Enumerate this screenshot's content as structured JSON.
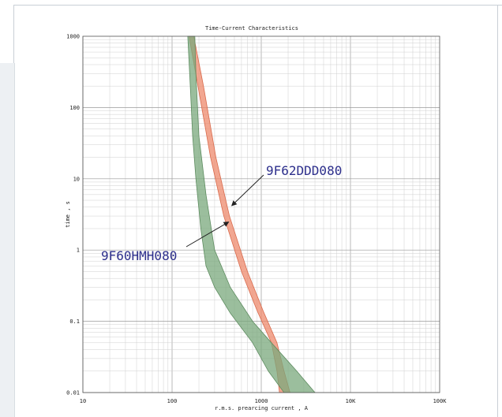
{
  "chart_data": {
    "type": "line",
    "title": "Time-Current Characteristics",
    "xlabel": "r.m.s. prearcing current , A",
    "ylabel": "time , s",
    "x_scale": "log",
    "y_scale": "log",
    "xlim": [
      10,
      100000
    ],
    "ylim": [
      0.01,
      1000
    ],
    "x_ticks": [
      "10",
      "100",
      "1000",
      "10K",
      "100K"
    ],
    "y_ticks": [
      "0.01",
      "0.1",
      "1",
      "10",
      "100",
      "1000"
    ],
    "grid": true,
    "colors": {
      "band_9F62DDD080": "#ee8a6c",
      "band_9F60HMH080": "#7aa87c",
      "annotation": "#2d2f8c"
    },
    "series": [
      {
        "name": "9F62DDD080",
        "kind": "band",
        "min_curve": [
          [
            155,
            1000
          ],
          [
            195,
            200
          ],
          [
            270,
            20
          ],
          [
            380,
            3
          ],
          [
            600,
            0.5
          ],
          [
            900,
            0.14
          ],
          [
            1300,
            0.05
          ],
          [
            1500,
            0.02
          ],
          [
            1600,
            0.01
          ]
        ],
        "max_curve": [
          [
            175,
            1000
          ],
          [
            225,
            200
          ],
          [
            310,
            20
          ],
          [
            440,
            3
          ],
          [
            700,
            0.5
          ],
          [
            1050,
            0.14
          ],
          [
            1500,
            0.05
          ],
          [
            1800,
            0.02
          ],
          [
            2100,
            0.01
          ]
        ]
      },
      {
        "name": "9F60HMH080",
        "kind": "band",
        "min_curve": [
          [
            150,
            1000
          ],
          [
            160,
            200
          ],
          [
            170,
            40
          ],
          [
            185,
            10
          ],
          [
            210,
            2
          ],
          [
            240,
            0.6
          ],
          [
            300,
            0.3
          ],
          [
            450,
            0.13
          ],
          [
            800,
            0.05
          ],
          [
            1200,
            0.02
          ],
          [
            1800,
            0.01
          ]
        ],
        "max_curve": [
          [
            180,
            1000
          ],
          [
            185,
            300
          ],
          [
            200,
            40
          ],
          [
            240,
            6
          ],
          [
            300,
            1
          ],
          [
            450,
            0.3
          ],
          [
            800,
            0.1
          ],
          [
            1300,
            0.05
          ],
          [
            2500,
            0.02
          ],
          [
            4000,
            0.01
          ]
        ]
      }
    ],
    "annotations": [
      {
        "text": "9F62DDD080",
        "target": [
          440,
          4
        ]
      },
      {
        "text": "9F60HMH080",
        "target": [
          215,
          2.6
        ]
      }
    ]
  }
}
